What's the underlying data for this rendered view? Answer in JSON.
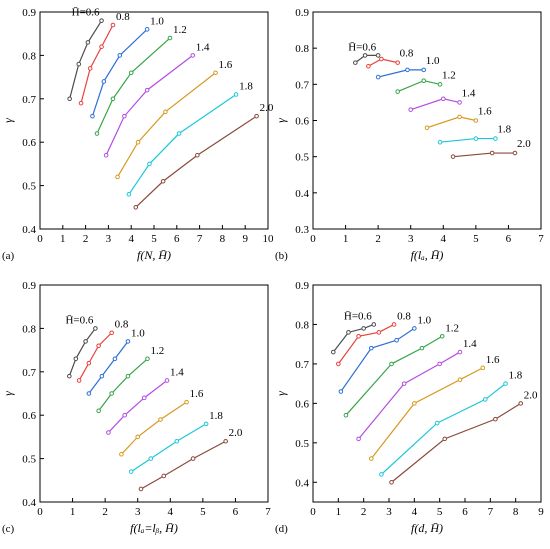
{
  "series_colors": [
    "#4d4d4d",
    "#e8413c",
    "#2d6fd6",
    "#36a548",
    "#b44de0",
    "#d69a1f",
    "#1cc8d8",
    "#8a4a3a"
  ],
  "series_names": [
    "H̄=0.6",
    "0.8",
    "1.0",
    "1.2",
    "1.4",
    "1.6",
    "1.8",
    "2.0"
  ],
  "chart_data": [
    {
      "type": "line",
      "panel_label": "(a)",
      "xlabel": "f(N, H̄)",
      "ylabel": "γ",
      "xlim": [
        0,
        10
      ],
      "ylim": [
        0.4,
        0.9
      ],
      "xticks": [
        "0",
        "1",
        "2",
        "3",
        "4",
        "5",
        "6",
        "7",
        "8",
        "9",
        "10"
      ],
      "yticks": [
        "0.4",
        "0.5",
        "0.6",
        "0.7",
        "0.8",
        "0.9"
      ],
      "series": [
        {
          "name": "H̄=0.6",
          "x": [
            1.3,
            1.7,
            2.1,
            2.7
          ],
          "y": [
            0.7,
            0.78,
            0.83,
            0.88
          ]
        },
        {
          "name": "0.8",
          "x": [
            1.8,
            2.2,
            2.7,
            3.2
          ],
          "y": [
            0.69,
            0.77,
            0.82,
            0.87
          ]
        },
        {
          "name": "1.0",
          "x": [
            2.3,
            2.8,
            3.5,
            4.7
          ],
          "y": [
            0.66,
            0.74,
            0.8,
            0.86
          ]
        },
        {
          "name": "1.2",
          "x": [
            2.5,
            3.2,
            4.0,
            5.7
          ],
          "y": [
            0.62,
            0.7,
            0.76,
            0.84
          ]
        },
        {
          "name": "1.4",
          "x": [
            2.9,
            3.7,
            4.7,
            6.7
          ],
          "y": [
            0.57,
            0.66,
            0.72,
            0.8
          ]
        },
        {
          "name": "1.6",
          "x": [
            3.4,
            4.3,
            5.5,
            7.7
          ],
          "y": [
            0.52,
            0.6,
            0.67,
            0.76
          ]
        },
        {
          "name": "1.8",
          "x": [
            3.9,
            4.8,
            6.1,
            8.6
          ],
          "y": [
            0.48,
            0.55,
            0.62,
            0.71
          ]
        },
        {
          "name": "2.0",
          "x": [
            4.2,
            5.4,
            6.9,
            9.5
          ],
          "y": [
            0.45,
            0.51,
            0.57,
            0.66
          ]
        }
      ],
      "label_positions": "series labels at upper end of each line"
    },
    {
      "type": "line",
      "panel_label": "(b)",
      "xlabel": "f(lₐ, H̄)",
      "ylabel": "γ",
      "xlim": [
        0,
        7
      ],
      "ylim": [
        0.3,
        0.9
      ],
      "xticks": [
        "0",
        "1",
        "2",
        "3",
        "4",
        "5",
        "6",
        "7"
      ],
      "yticks": [
        "0.3",
        "0.4",
        "0.5",
        "0.6",
        "0.7",
        "0.8",
        "0.9"
      ],
      "series": [
        {
          "name": "H̄=0.6",
          "x": [
            1.3,
            1.6,
            2.0
          ],
          "y": [
            0.76,
            0.78,
            0.78
          ]
        },
        {
          "name": "0.8",
          "x": [
            1.7,
            2.1,
            2.6
          ],
          "y": [
            0.75,
            0.77,
            0.76
          ]
        },
        {
          "name": "1.0",
          "x": [
            2.0,
            2.9,
            3.4
          ],
          "y": [
            0.72,
            0.74,
            0.74
          ]
        },
        {
          "name": "1.2",
          "x": [
            2.6,
            3.4,
            3.9
          ],
          "y": [
            0.68,
            0.71,
            0.7
          ]
        },
        {
          "name": "1.4",
          "x": [
            3.0,
            4.0,
            4.5
          ],
          "y": [
            0.63,
            0.66,
            0.65
          ]
        },
        {
          "name": "1.6",
          "x": [
            3.5,
            4.5,
            5.0
          ],
          "y": [
            0.58,
            0.61,
            0.6
          ]
        },
        {
          "name": "1.8",
          "x": [
            3.9,
            5.0,
            5.6
          ],
          "y": [
            0.54,
            0.55,
            0.55
          ]
        },
        {
          "name": "2.0",
          "x": [
            4.3,
            5.5,
            6.2
          ],
          "y": [
            0.5,
            0.51,
            0.51
          ]
        }
      ]
    },
    {
      "type": "line",
      "panel_label": "(c)",
      "xlabel": "f(lₐ=lᵦ, H̄)",
      "ylabel": "γ",
      "xlim": [
        0,
        7
      ],
      "ylim": [
        0.4,
        0.9
      ],
      "xticks": [
        "0",
        "1",
        "2",
        "3",
        "4",
        "5",
        "6",
        "7"
      ],
      "yticks": [
        "0.4",
        "0.5",
        "0.6",
        "0.7",
        "0.8",
        "0.9"
      ],
      "series": [
        {
          "name": "H̄=0.6",
          "x": [
            0.9,
            1.1,
            1.4,
            1.7
          ],
          "y": [
            0.69,
            0.73,
            0.77,
            0.8
          ]
        },
        {
          "name": "0.8",
          "x": [
            1.2,
            1.5,
            1.8,
            2.2
          ],
          "y": [
            0.68,
            0.72,
            0.76,
            0.79
          ]
        },
        {
          "name": "1.0",
          "x": [
            1.5,
            1.9,
            2.3,
            2.7
          ],
          "y": [
            0.65,
            0.69,
            0.73,
            0.77
          ]
        },
        {
          "name": "1.2",
          "x": [
            1.8,
            2.2,
            2.7,
            3.3
          ],
          "y": [
            0.61,
            0.65,
            0.69,
            0.73
          ]
        },
        {
          "name": "1.4",
          "x": [
            2.1,
            2.6,
            3.2,
            3.9
          ],
          "y": [
            0.56,
            0.6,
            0.64,
            0.68
          ]
        },
        {
          "name": "1.6",
          "x": [
            2.5,
            3.0,
            3.7,
            4.5
          ],
          "y": [
            0.51,
            0.55,
            0.59,
            0.63
          ]
        },
        {
          "name": "1.8",
          "x": [
            2.8,
            3.4,
            4.2,
            5.1
          ],
          "y": [
            0.47,
            0.5,
            0.54,
            0.58
          ]
        },
        {
          "name": "2.0",
          "x": [
            3.1,
            3.8,
            4.7,
            5.7
          ],
          "y": [
            0.43,
            0.46,
            0.5,
            0.54
          ]
        }
      ]
    },
    {
      "type": "line",
      "panel_label": "(d)",
      "xlabel": "f(d, H̄)",
      "ylabel": "γ",
      "xlim": [
        0,
        9
      ],
      "ylim": [
        0.35,
        0.9
      ],
      "xticks": [
        "0",
        "1",
        "2",
        "3",
        "4",
        "5",
        "6",
        "7",
        "8",
        "9"
      ],
      "yticks": [
        "0.4",
        "0.5",
        "0.6",
        "0.7",
        "0.8",
        "0.9"
      ],
      "series": [
        {
          "name": "H̄=0.6",
          "x": [
            0.8,
            1.4,
            2.0,
            2.4
          ],
          "y": [
            0.73,
            0.78,
            0.79,
            0.8
          ]
        },
        {
          "name": "0.8",
          "x": [
            1.0,
            1.8,
            2.6,
            3.2
          ],
          "y": [
            0.7,
            0.77,
            0.78,
            0.8
          ]
        },
        {
          "name": "1.0",
          "x": [
            1.1,
            2.3,
            3.3,
            4.0
          ],
          "y": [
            0.63,
            0.74,
            0.76,
            0.79
          ]
        },
        {
          "name": "1.2",
          "x": [
            1.3,
            3.1,
            4.3,
            5.1
          ],
          "y": [
            0.57,
            0.7,
            0.74,
            0.77
          ]
        },
        {
          "name": "1.4",
          "x": [
            1.8,
            3.6,
            5.0,
            5.8
          ],
          "y": [
            0.51,
            0.65,
            0.7,
            0.73
          ]
        },
        {
          "name": "1.6",
          "x": [
            2.3,
            4.0,
            5.8,
            6.7
          ],
          "y": [
            0.46,
            0.6,
            0.66,
            0.69
          ]
        },
        {
          "name": "1.8",
          "x": [
            2.7,
            4.9,
            6.8,
            7.6
          ],
          "y": [
            0.42,
            0.55,
            0.61,
            0.65
          ]
        },
        {
          "name": "2.0",
          "x": [
            3.1,
            5.2,
            7.2,
            8.2
          ],
          "y": [
            0.4,
            0.51,
            0.56,
            0.6
          ]
        }
      ]
    }
  ]
}
